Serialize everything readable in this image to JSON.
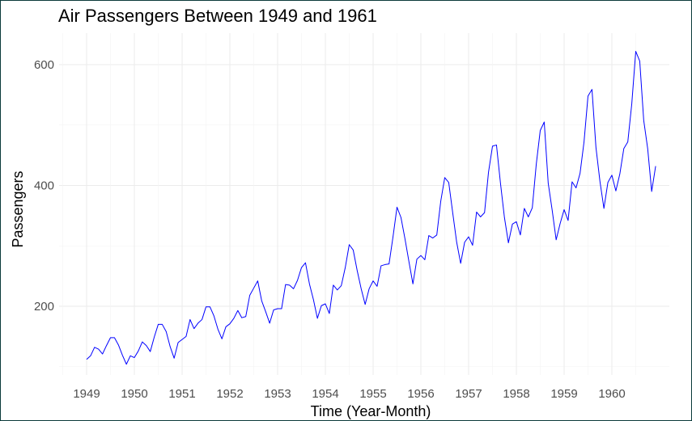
{
  "chart_data": {
    "type": "line",
    "title": "Air Passengers Between 1949 and 1961",
    "xlabel": "Time (Year-Month)",
    "ylabel": "Passengers",
    "x_start": "1949-01",
    "x_end": "1960-12",
    "frequency": "monthly",
    "xticks": [
      "1949",
      "1950",
      "1951",
      "1952",
      "1953",
      "1954",
      "1955",
      "1956",
      "1957",
      "1958",
      "1959",
      "1960"
    ],
    "yticks": [
      200,
      400,
      600
    ],
    "ylim": [
      90,
      650
    ],
    "grid": true,
    "legend": "none",
    "line_color": "#0000ff",
    "series": [
      {
        "values": [
          112,
          118,
          132,
          129,
          121,
          135,
          148,
          148,
          136,
          119,
          104,
          118,
          115,
          126,
          141,
          135,
          125,
          149,
          170,
          170,
          158,
          133,
          114,
          140,
          145,
          150,
          178,
          163,
          172,
          178,
          199,
          199,
          184,
          162,
          146,
          166,
          171,
          180,
          193,
          181,
          183,
          218,
          230,
          242,
          209,
          191,
          172,
          194,
          196,
          196,
          236,
          235,
          229,
          243,
          264,
          272,
          237,
          211,
          180,
          201,
          204,
          188,
          235,
          227,
          234,
          264,
          302,
          293,
          259,
          229,
          203,
          229,
          242,
          233,
          267,
          269,
          270,
          315,
          364,
          347,
          312,
          274,
          237,
          278,
          284,
          277,
          317,
          313,
          318,
          374,
          413,
          405,
          355,
          306,
          271,
          306,
          315,
          301,
          356,
          348,
          355,
          422,
          465,
          467,
          404,
          347,
          305,
          336,
          340,
          318,
          362,
          348,
          363,
          435,
          491,
          505,
          404,
          359,
          310,
          337,
          360,
          342,
          406,
          396,
          420,
          472,
          548,
          559,
          463,
          407,
          362,
          405,
          417,
          391,
          419,
          461,
          472,
          535,
          622,
          606,
          508,
          461,
          390,
          432
        ]
      }
    ]
  }
}
